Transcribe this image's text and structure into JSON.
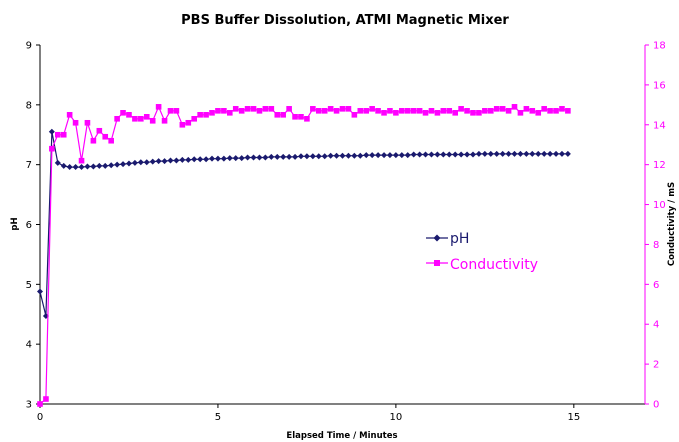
{
  "chart_data": {
    "type": "line",
    "title": "PBS Buffer Dissolution, ATMI Magnetic Mixer",
    "xlabel": "Elapsed Time / Minutes",
    "ylabel": "pH",
    "y2label": "Conductivity / mS",
    "xlim": [
      0,
      17
    ],
    "ylim": [
      3,
      9
    ],
    "y2lim": [
      0,
      18
    ],
    "x_ticks": [
      0,
      5,
      10,
      15
    ],
    "y_ticks": [
      3,
      4,
      5,
      6,
      7,
      8,
      9
    ],
    "y2_ticks": [
      0,
      2,
      4,
      6,
      8,
      10,
      12,
      14,
      16,
      18
    ],
    "grid": false,
    "legend_position": "center-right",
    "colors": {
      "ph": "#1a1a6e",
      "conductivity": "#ff00ff"
    },
    "series": [
      {
        "name": "pH",
        "axis": "left",
        "marker": "diamond",
        "x": [
          0.0,
          0.167,
          0.333,
          0.5,
          0.667,
          0.833,
          1.0,
          1.167,
          1.333,
          1.5,
          1.667,
          1.833,
          2.0,
          2.167,
          2.333,
          2.5,
          2.667,
          2.833,
          3.0,
          3.167,
          3.333,
          3.5,
          3.667,
          3.833,
          4.0,
          4.167,
          4.333,
          4.5,
          4.667,
          4.833,
          5.0,
          5.167,
          5.333,
          5.5,
          5.667,
          5.833,
          6.0,
          6.167,
          6.333,
          6.5,
          6.667,
          6.833,
          7.0,
          7.167,
          7.333,
          7.5,
          7.667,
          7.833,
          8.0,
          8.167,
          8.333,
          8.5,
          8.667,
          8.833,
          9.0,
          9.167,
          9.333,
          9.5,
          9.667,
          9.833,
          10.0,
          10.167,
          10.333,
          10.5,
          10.667,
          10.833,
          11.0,
          11.167,
          11.333,
          11.5,
          11.667,
          11.833,
          12.0,
          12.167,
          12.333,
          12.5,
          12.667,
          12.833,
          13.0,
          13.167,
          13.333,
          13.5,
          13.667,
          13.833,
          14.0,
          14.167,
          14.333,
          14.5,
          14.667,
          14.833
        ],
        "values": [
          4.88,
          4.47,
          7.55,
          7.03,
          6.98,
          6.96,
          6.96,
          6.96,
          6.97,
          6.97,
          6.98,
          6.98,
          6.99,
          7.0,
          7.01,
          7.02,
          7.03,
          7.04,
          7.04,
          7.05,
          7.06,
          7.06,
          7.07,
          7.07,
          7.08,
          7.08,
          7.09,
          7.09,
          7.09,
          7.1,
          7.1,
          7.1,
          7.11,
          7.11,
          7.11,
          7.12,
          7.12,
          7.12,
          7.12,
          7.13,
          7.13,
          7.13,
          7.13,
          7.13,
          7.14,
          7.14,
          7.14,
          7.14,
          7.14,
          7.15,
          7.15,
          7.15,
          7.15,
          7.15,
          7.15,
          7.16,
          7.16,
          7.16,
          7.16,
          7.16,
          7.16,
          7.16,
          7.16,
          7.17,
          7.17,
          7.17,
          7.17,
          7.17,
          7.17,
          7.17,
          7.17,
          7.17,
          7.17,
          7.17,
          7.18,
          7.18,
          7.18,
          7.18,
          7.18,
          7.18,
          7.18,
          7.18,
          7.18,
          7.18,
          7.18,
          7.18,
          7.18,
          7.18,
          7.18,
          7.18
        ]
      },
      {
        "name": "Conductivity",
        "axis": "right",
        "marker": "square",
        "x": [
          0.0,
          0.167,
          0.333,
          0.5,
          0.667,
          0.833,
          1.0,
          1.167,
          1.333,
          1.5,
          1.667,
          1.833,
          2.0,
          2.167,
          2.333,
          2.5,
          2.667,
          2.833,
          3.0,
          3.167,
          3.333,
          3.5,
          3.667,
          3.833,
          4.0,
          4.167,
          4.333,
          4.5,
          4.667,
          4.833,
          5.0,
          5.167,
          5.333,
          5.5,
          5.667,
          5.833,
          6.0,
          6.167,
          6.333,
          6.5,
          6.667,
          6.833,
          7.0,
          7.167,
          7.333,
          7.5,
          7.667,
          7.833,
          8.0,
          8.167,
          8.333,
          8.5,
          8.667,
          8.833,
          9.0,
          9.167,
          9.333,
          9.5,
          9.667,
          9.833,
          10.0,
          10.167,
          10.333,
          10.5,
          10.667,
          10.833,
          11.0,
          11.167,
          11.333,
          11.5,
          11.667,
          11.833,
          12.0,
          12.167,
          12.333,
          12.5,
          12.667,
          12.833,
          13.0,
          13.167,
          13.333,
          13.5,
          13.667,
          13.833,
          14.0,
          14.167,
          14.333,
          14.5,
          14.667,
          14.833
        ],
        "values": [
          0.0,
          0.25,
          12.8,
          13.5,
          13.5,
          14.5,
          14.1,
          12.2,
          14.1,
          13.2,
          13.7,
          13.4,
          13.2,
          14.3,
          14.6,
          14.5,
          14.3,
          14.3,
          14.4,
          14.2,
          14.9,
          14.2,
          14.7,
          14.7,
          14.0,
          14.1,
          14.3,
          14.5,
          14.5,
          14.6,
          14.7,
          14.7,
          14.6,
          14.8,
          14.7,
          14.8,
          14.8,
          14.7,
          14.8,
          14.8,
          14.5,
          14.5,
          14.8,
          14.4,
          14.4,
          14.3,
          14.8,
          14.7,
          14.7,
          14.8,
          14.7,
          14.8,
          14.8,
          14.5,
          14.7,
          14.7,
          14.8,
          14.7,
          14.6,
          14.7,
          14.6,
          14.7,
          14.7,
          14.7,
          14.7,
          14.6,
          14.7,
          14.6,
          14.7,
          14.7,
          14.6,
          14.8,
          14.7,
          14.6,
          14.6,
          14.7,
          14.7,
          14.8,
          14.8,
          14.7,
          14.9,
          14.6,
          14.8,
          14.7,
          14.6,
          14.8,
          14.7,
          14.7,
          14.8,
          14.7
        ]
      }
    ]
  }
}
